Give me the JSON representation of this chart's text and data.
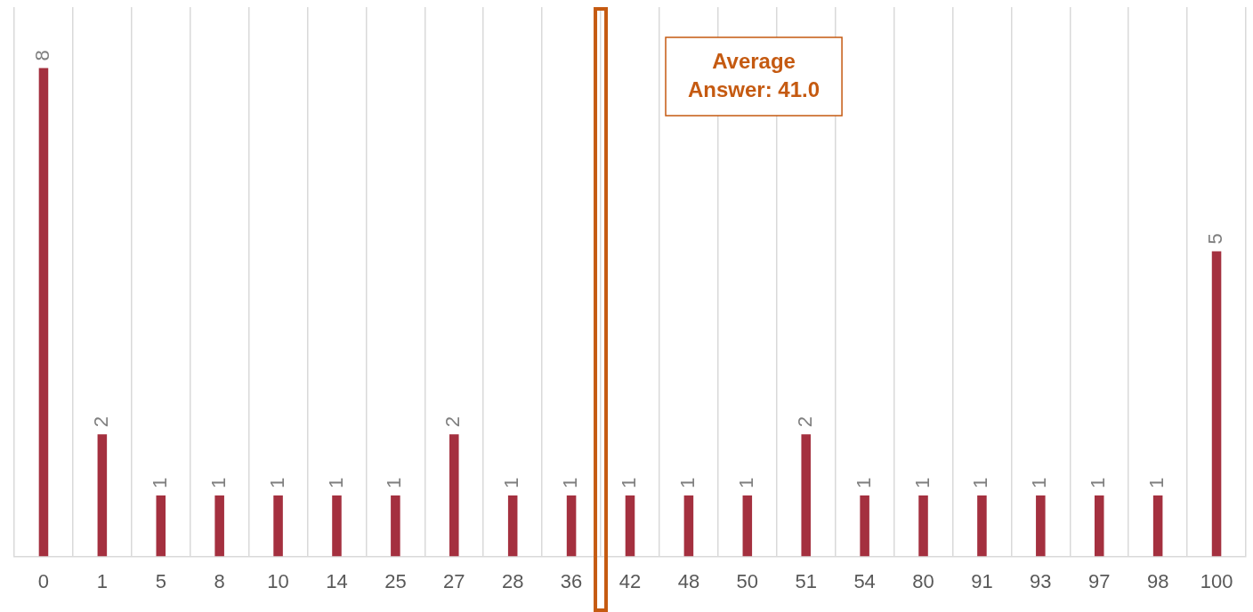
{
  "chart_data": {
    "type": "bar",
    "categories": [
      "0",
      "1",
      "5",
      "8",
      "10",
      "14",
      "25",
      "27",
      "28",
      "36",
      "42",
      "48",
      "50",
      "51",
      "54",
      "80",
      "91",
      "93",
      "97",
      "98",
      "100"
    ],
    "values": [
      8,
      2,
      1,
      1,
      1,
      1,
      1,
      2,
      1,
      1,
      1,
      1,
      1,
      2,
      1,
      1,
      1,
      1,
      1,
      1,
      5
    ],
    "color": "#a4303f",
    "data_labels": true,
    "grid": "x",
    "relative": false,
    "annotations": [
      "Average Answer: 41.0"
    ]
  }
}
